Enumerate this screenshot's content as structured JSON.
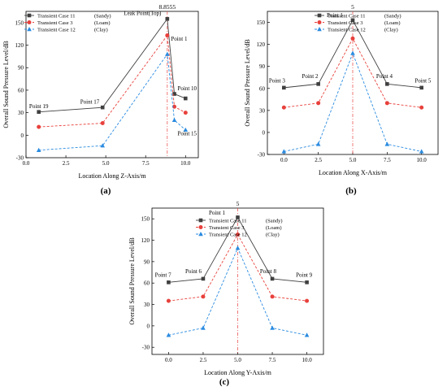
{
  "colors": {
    "sandy": "#404040",
    "loam": "#e8413c",
    "clay": "#2a8be0",
    "marker": "#e8413c"
  },
  "chart_data": [
    {
      "id": "a",
      "type": "line",
      "panel_label": "(a)",
      "xlabel": "Location Along Z-Axis/m",
      "ylabel": "Overall Sound Pressure Level/dB",
      "xlim": [
        0,
        10.8
      ],
      "ylim": [
        -30,
        165
      ],
      "xticks": [
        0.0,
        2.5,
        5.0,
        7.5,
        10.0
      ],
      "xtick_labels": [
        "0.0",
        "2.5",
        "5.0",
        "7.5",
        "10.0"
      ],
      "yticks": [
        -30,
        0,
        30,
        60,
        90,
        120,
        150
      ],
      "ytick_labels": [
        "-30",
        "0",
        "30",
        "60",
        "90",
        "120",
        "150"
      ],
      "marker_line": {
        "x": 8.8555,
        "label": "8.8555"
      },
      "legend_position": "top-left",
      "x": [
        0.8,
        4.8,
        8.8555,
        9.3,
        10.0
      ],
      "series": [
        {
          "name": "Transient Case 11",
          "tag": "(Sandy)",
          "color_key": "sandy",
          "marker": "square",
          "dash": "solid",
          "values": [
            31,
            37,
            155,
            55,
            49
          ]
        },
        {
          "name": "Transient Case 3",
          "tag": "(Loam)",
          "color_key": "loam",
          "marker": "circle",
          "dash": "dashed",
          "values": [
            11,
            16,
            133,
            38,
            30
          ]
        },
        {
          "name": "Transient Case 12",
          "tag": "(Clay)",
          "color_key": "clay",
          "marker": "triangle",
          "dash": "dashed",
          "values": [
            -20,
            -14,
            108,
            20,
            7
          ]
        }
      ],
      "annotations": [
        {
          "text": "Point 19",
          "x": 0.8,
          "y": 36
        },
        {
          "text": "Point 17",
          "x": 4.0,
          "y": 42
        },
        {
          "text": "Leak Point(Top)",
          "x": 7.3,
          "y": 160
        },
        {
          "text": "Point 1",
          "x": 9.6,
          "y": 126
        },
        {
          "text": "Point 10",
          "x": 10.1,
          "y": 60
        },
        {
          "text": "Point 15",
          "x": 10.1,
          "y": 0
        }
      ]
    },
    {
      "id": "b",
      "type": "line",
      "panel_label": "(b)",
      "xlabel": "Location Along X-Axis/m",
      "ylabel": "Overall Sound Pressure Level/dB",
      "xlim": [
        -1.2,
        11.2
      ],
      "ylim": [
        -30,
        165
      ],
      "xticks": [
        0.0,
        2.5,
        5.0,
        7.5,
        10.0
      ],
      "xtick_labels": [
        "0.0",
        "2.5",
        "5.0",
        "7.5",
        "10.0"
      ],
      "yticks": [
        -30,
        0,
        30,
        60,
        90,
        120,
        150
      ],
      "ytick_labels": [
        "-30",
        "0",
        "30",
        "60",
        "90",
        "120",
        "150"
      ],
      "marker_line": {
        "x": 5.0,
        "label": "5"
      },
      "legend_position": "top-right",
      "x": [
        0.0,
        2.5,
        5.0,
        7.5,
        10.0
      ],
      "series": [
        {
          "name": "Transient Case 11",
          "tag": "(Sandy)",
          "color_key": "sandy",
          "marker": "square",
          "dash": "solid",
          "values": [
            61,
            66,
            153,
            66,
            61
          ]
        },
        {
          "name": "Transient Case 3",
          "tag": "(Loam)",
          "color_key": "loam",
          "marker": "circle",
          "dash": "dashed",
          "values": [
            34,
            40,
            128,
            40,
            34
          ]
        },
        {
          "name": "Transient Case 12",
          "tag": "(Clay)",
          "color_key": "clay",
          "marker": "triangle",
          "dash": "dashed",
          "values": [
            -26,
            -16,
            108,
            -16,
            -26
          ]
        }
      ],
      "annotations": [
        {
          "text": "Point 3",
          "x": -0.5,
          "y": 68
        },
        {
          "text": "Point 2",
          "x": 1.9,
          "y": 74
        },
        {
          "text": "Point 1",
          "x": 3.7,
          "y": 157
        },
        {
          "text": "Point 4",
          "x": 7.3,
          "y": 74
        },
        {
          "text": "Point 5",
          "x": 10.1,
          "y": 68
        }
      ]
    },
    {
      "id": "c",
      "type": "line",
      "panel_label": "(c)",
      "xlabel": "Location Along Y-Axis/m",
      "ylabel": "Overall Sound Pressure Level/dB",
      "xlim": [
        -1.2,
        11.2
      ],
      "ylim": [
        -40,
        165
      ],
      "xticks": [
        0.0,
        2.5,
        5.0,
        7.5,
        10.0
      ],
      "xtick_labels": [
        "0.0",
        "2.5",
        "5.0",
        "7.5",
        "10.0"
      ],
      "yticks": [
        -30,
        0,
        30,
        60,
        90,
        120,
        150
      ],
      "ytick_labels": [
        "-30",
        "0",
        "30",
        "60",
        "90",
        "120",
        "150"
      ],
      "marker_line": {
        "x": 5.0,
        "label": "5"
      },
      "legend_position": "top-right",
      "x": [
        0.0,
        2.5,
        5.0,
        7.5,
        10.0
      ],
      "series": [
        {
          "name": "Transient Case 11",
          "tag": "(Sandy)",
          "color_key": "sandy",
          "marker": "square",
          "dash": "solid",
          "values": [
            61,
            66,
            152,
            66,
            61
          ]
        },
        {
          "name": "Transient Case 3",
          "tag": "(Loam)",
          "color_key": "loam",
          "marker": "circle",
          "dash": "dashed",
          "values": [
            35,
            41,
            128,
            41,
            35
          ]
        },
        {
          "name": "Transient Case 12",
          "tag": "(Clay)",
          "color_key": "clay",
          "marker": "triangle",
          "dash": "dashed",
          "values": [
            -13,
            -3,
            109,
            -3,
            -13
          ]
        }
      ],
      "annotations": [
        {
          "text": "Point 7",
          "x": -0.4,
          "y": 69
        },
        {
          "text": "Point 6",
          "x": 1.8,
          "y": 74
        },
        {
          "text": "Point 1",
          "x": 3.5,
          "y": 156
        },
        {
          "text": "Point 8",
          "x": 7.2,
          "y": 74
        },
        {
          "text": "Point 9",
          "x": 9.8,
          "y": 69
        }
      ]
    }
  ]
}
